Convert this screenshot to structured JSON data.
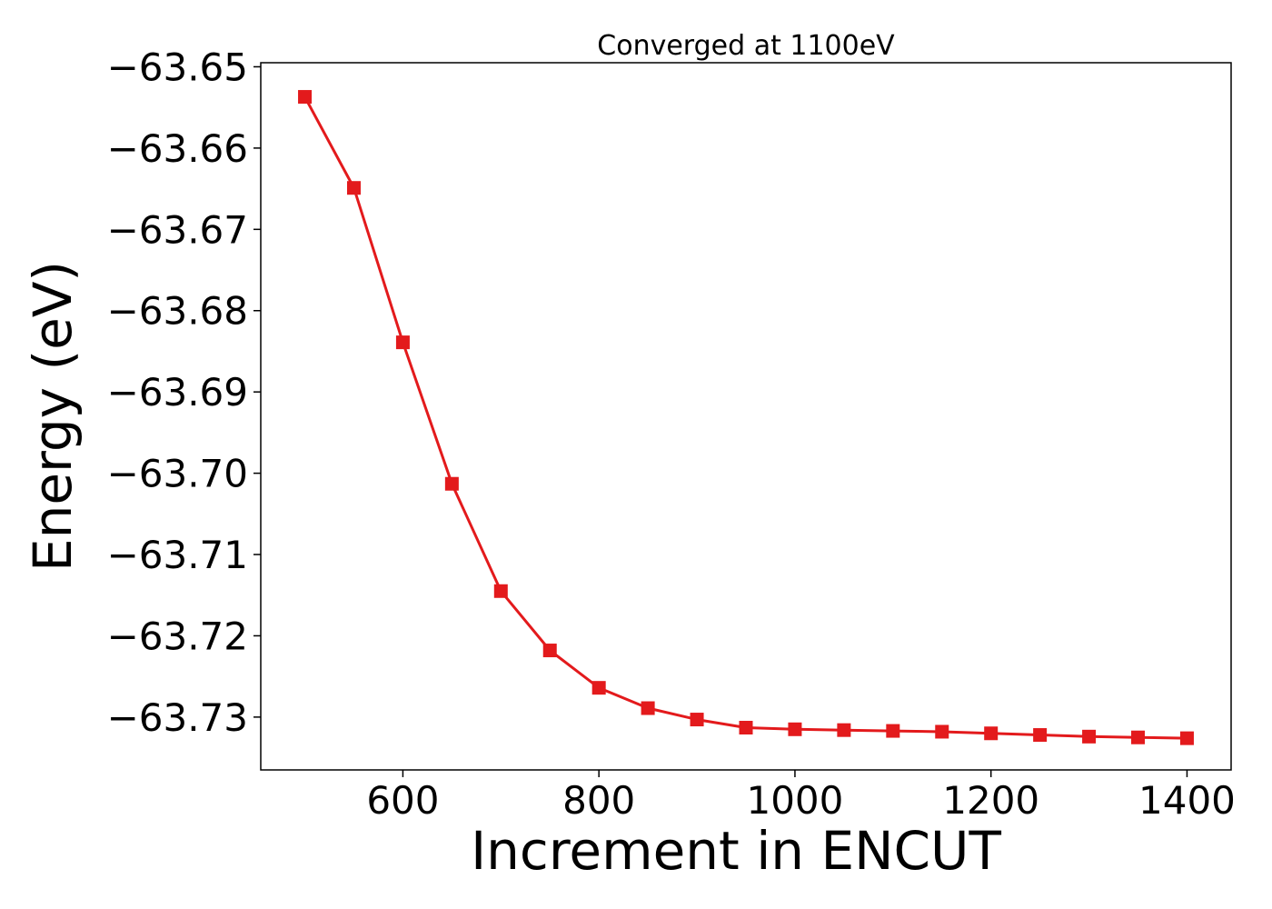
{
  "chart_data": {
    "type": "line",
    "title": "Converged at 1100eV",
    "xlabel": "Increment in ENCUT",
    "ylabel": "Energy (eV)",
    "xlim": [
      455,
      1445
    ],
    "ylim": [
      -63.7365,
      -63.6495
    ],
    "xticks": [
      600,
      800,
      1000,
      1200,
      1400
    ],
    "xtick_labels": [
      "600",
      "800",
      "1000",
      "1200",
      "1400"
    ],
    "yticks": [
      -63.65,
      -63.66,
      -63.67,
      -63.68,
      -63.69,
      -63.7,
      -63.71,
      -63.72,
      -63.73
    ],
    "ytick_labels": [
      "−63.65",
      "−63.66",
      "−63.67",
      "−63.68",
      "−63.69",
      "−63.70",
      "−63.71",
      "−63.72",
      "−63.73"
    ],
    "grid": false,
    "series": [
      {
        "color": "#e31a1c",
        "marker": "square",
        "x": [
          500,
          550,
          600,
          650,
          700,
          750,
          800,
          850,
          900,
          950,
          1000,
          1050,
          1100,
          1150,
          1200,
          1250,
          1300,
          1350,
          1400
        ],
        "y": [
          -63.6537,
          -63.6649,
          -63.6839,
          -63.7013,
          -63.7145,
          -63.7218,
          -63.7264,
          -63.7289,
          -63.7303,
          -63.7313,
          -63.7315,
          -63.7316,
          -63.7317,
          -63.7318,
          -63.732,
          -63.7322,
          -63.7324,
          -63.7325,
          -63.7326
        ]
      }
    ]
  }
}
